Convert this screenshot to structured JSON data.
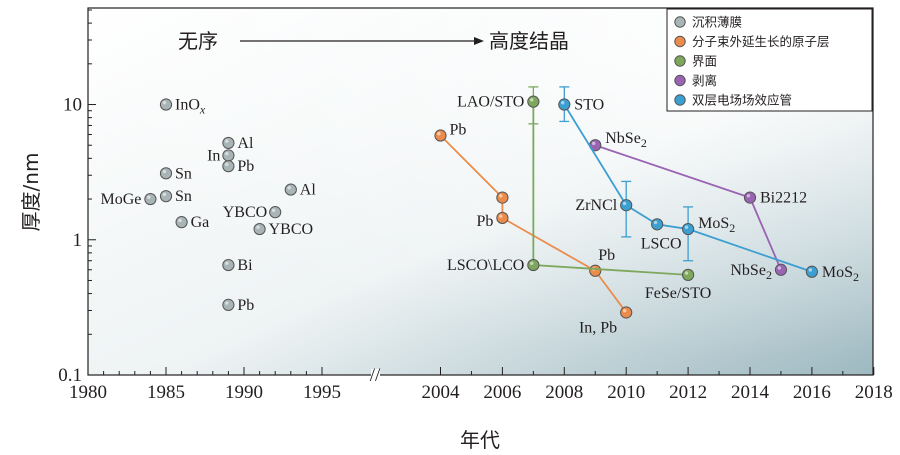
{
  "chart_data": {
    "type": "scatter",
    "yscale": "log",
    "ylim": [
      0.1,
      50
    ],
    "xlabel": "年代",
    "ylabel": "厚度/nm",
    "x_ticks_left": [
      "1980",
      "1985",
      "1990",
      "1995"
    ],
    "x_ticks_right": [
      "2004",
      "2006",
      "2008",
      "2010",
      "2012",
      "2014",
      "2016",
      "2018"
    ],
    "x_break": "//",
    "y_ticks": [
      {
        "value": 0.1,
        "label": "0.1"
      },
      {
        "value": 1,
        "label": "1"
      },
      {
        "value": 10,
        "label": "10"
      }
    ],
    "band": {
      "left": "无序",
      "right": "高度结晶"
    },
    "legend": [
      {
        "name": "沉积薄膜",
        "color": "#a8b4b6"
      },
      {
        "name": "分子束外延生长的原子层",
        "color": "#eb8c4c"
      },
      {
        "name": "界面",
        "color": "#7da85c"
      },
      {
        "name": "剥离",
        "color": "#9a63b3"
      },
      {
        "name": "双层电场场效应管",
        "color": "#3c9fd1"
      }
    ],
    "series": [
      {
        "name": "沉积薄膜",
        "color": "#a8b4b6",
        "connected": false,
        "points": [
          {
            "x": 1985,
            "y": 10,
            "label": "InO",
            "sub": "x"
          },
          {
            "x": 1989,
            "y": 5.2,
            "label": "Al"
          },
          {
            "x": 1989,
            "y": 4.2,
            "label": "In"
          },
          {
            "x": 1989,
            "y": 3.5,
            "label": "Pb"
          },
          {
            "x": 1985,
            "y": 3.1,
            "label": "Sn"
          },
          {
            "x": 1985,
            "y": 2.1,
            "label": "Sn"
          },
          {
            "x": 1984,
            "y": 2.0,
            "label": "MoGe"
          },
          {
            "x": 1993,
            "y": 2.35,
            "label": "Al"
          },
          {
            "x": 1992,
            "y": 1.6,
            "label": "YBCO"
          },
          {
            "x": 1991,
            "y": 1.2,
            "label": "YBCO"
          },
          {
            "x": 1986,
            "y": 1.35,
            "label": "Ga"
          },
          {
            "x": 1989,
            "y": 0.65,
            "label": "Bi"
          },
          {
            "x": 1989,
            "y": 0.33,
            "label": "Pb"
          }
        ]
      },
      {
        "name": "分子束外延生长的原子层",
        "color": "#eb8c4c",
        "connected": true,
        "points": [
          {
            "x": 2004,
            "y": 5.9,
            "label": "Pb"
          },
          {
            "x": 2006,
            "y": 2.05,
            "label": ""
          },
          {
            "x": 2006,
            "y": 1.45,
            "label": "Pb"
          },
          {
            "x": 2009,
            "y": 0.59,
            "label": "Pb"
          },
          {
            "x": 2010,
            "y": 0.29,
            "label": "In, Pb"
          }
        ]
      },
      {
        "name": "界面",
        "color": "#7da85c",
        "connected": true,
        "points": [
          {
            "x": 2007,
            "y": 10.5,
            "label": "LAO/STO",
            "err": [
              7.2,
              13.5
            ]
          },
          {
            "x": 2007,
            "y": 0.65,
            "label": "LSCO\\LCO"
          },
          {
            "x": 2012,
            "y": 0.55,
            "label": "FeSe/STO"
          }
        ]
      },
      {
        "name": "剥离",
        "color": "#9a63b3",
        "connected": true,
        "points": [
          {
            "x": 2009,
            "y": 5.0,
            "label": "NbSe",
            "sub": "2"
          },
          {
            "x": 2014,
            "y": 2.05,
            "label": "Bi2212"
          },
          {
            "x": 2015,
            "y": 0.6,
            "label": "NbSe",
            "sub": "2"
          }
        ]
      },
      {
        "name": "双层电场场效应管",
        "color": "#3c9fd1",
        "connected": true,
        "points": [
          {
            "x": 2008,
            "y": 10,
            "label": "STO",
            "err": [
              7.5,
              13.5
            ]
          },
          {
            "x": 2010,
            "y": 1.8,
            "label": "ZrNCl",
            "err": [
              1.05,
              2.7
            ]
          },
          {
            "x": 2011,
            "y": 1.3,
            "label": "LSCO"
          },
          {
            "x": 2012,
            "y": 1.2,
            "label": "MoS",
            "sub": "2",
            "err": [
              0.7,
              1.75
            ]
          },
          {
            "x": 2016,
            "y": 0.58,
            "label": "MoS",
            "sub": "2"
          }
        ]
      }
    ]
  }
}
